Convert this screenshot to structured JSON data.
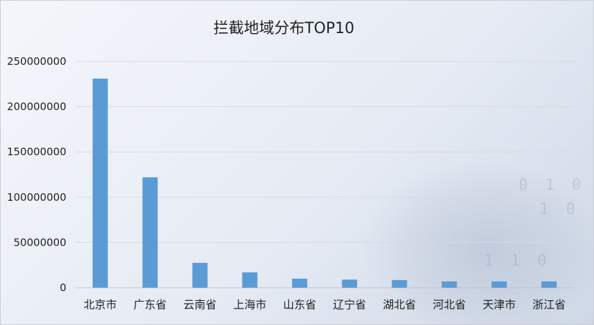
{
  "chart_data": {
    "type": "bar",
    "title": "拦截地域分布TOP10",
    "categories": [
      "北京市",
      "广东省",
      "云南省",
      "上海市",
      "山东省",
      "辽宁省",
      "湖北省",
      "河北省",
      "天津市",
      "浙江省"
    ],
    "values": [
      231000000,
      122000000,
      27500000,
      17000000,
      10000000,
      9000000,
      8500000,
      7000000,
      7000000,
      7000000
    ],
    "ylim": [
      0,
      250000000
    ],
    "yticks": [
      0,
      50000000,
      100000000,
      150000000,
      200000000,
      250000000
    ],
    "xlabel": "",
    "ylabel": "",
    "grid": true,
    "bar_color": "#5b9bd5"
  }
}
